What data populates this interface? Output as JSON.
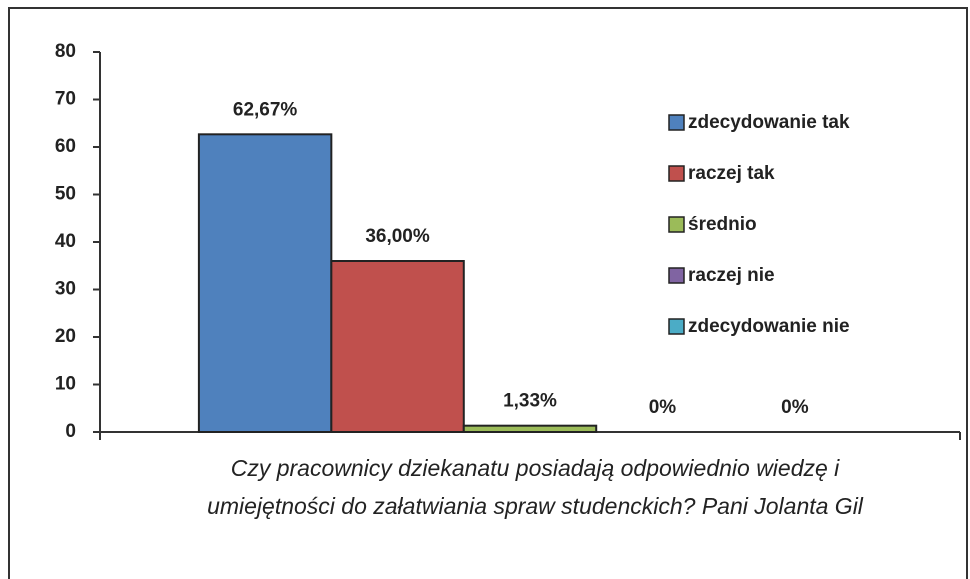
{
  "chart_data": {
    "type": "bar",
    "categories": [
      null
    ],
    "series": [
      {
        "name": "zdecydowanie tak",
        "color": "#4f81bd",
        "values": [
          62.67
        ],
        "value_labels": [
          "62,67%"
        ]
      },
      {
        "name": "raczej tak",
        "color": "#c0504d",
        "values": [
          36.0
        ],
        "value_labels": [
          "36,00%"
        ]
      },
      {
        "name": "średnio",
        "color": "#9bbb59",
        "values": [
          1.33
        ],
        "value_labels": [
          "1,33%"
        ]
      },
      {
        "name": "raczej nie",
        "color": "#8064a2",
        "values": [
          0
        ],
        "value_labels": [
          "0%"
        ]
      },
      {
        "name": "zdecydowanie nie",
        "color": "#4bacc6",
        "values": [
          0
        ],
        "value_labels": [
          "0%"
        ]
      }
    ],
    "ylim": [
      0,
      80
    ],
    "yticks": [
      0,
      10,
      20,
      30,
      40,
      50,
      60,
      70,
      80
    ],
    "xlabel": [
      "Czy pracownicy dziekanatu posiadają odpowiednio wiedzę i",
      "umiejętności do załatwiania spraw studenckich? Pani Jolanta Gil"
    ],
    "legend": "right"
  }
}
